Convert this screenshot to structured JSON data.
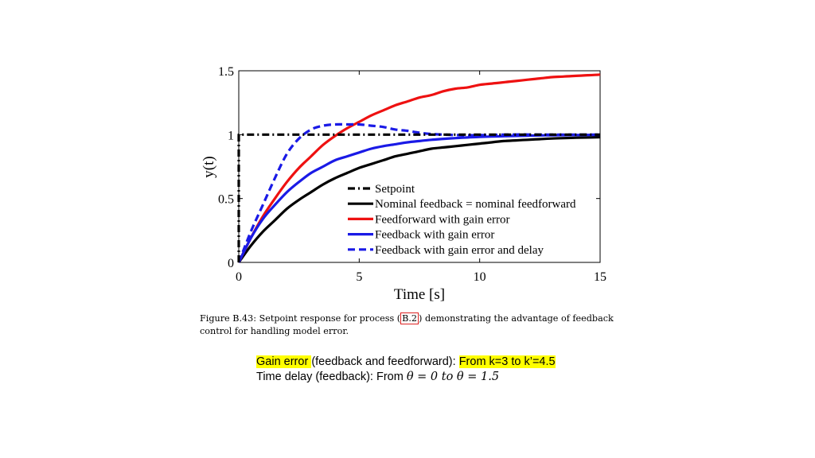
{
  "chart_data": {
    "type": "line",
    "xlabel": "Time [s]",
    "ylabel": "y(t)",
    "xlim": [
      0,
      15
    ],
    "ylim": [
      0,
      1.5
    ],
    "xticks": [
      "0",
      "5",
      "10",
      "15"
    ],
    "yticks": [
      "0",
      "0.5",
      "1",
      "1.5"
    ],
    "legend_position": "bottom-right",
    "grid": false,
    "x": [
      0,
      0.5,
      1,
      1.5,
      2,
      2.5,
      3,
      3.5,
      4,
      4.5,
      5,
      5.5,
      6,
      6.5,
      7,
      7.5,
      8,
      8.5,
      9,
      9.5,
      10,
      10.5,
      11,
      11.5,
      12,
      12.5,
      13,
      13.5,
      14,
      14.5,
      15
    ],
    "series": [
      {
        "name": "Setpoint",
        "color": "#000000",
        "dash": "dashdot",
        "step": true,
        "values": [
          1,
          1,
          1,
          1,
          1,
          1,
          1,
          1,
          1,
          1,
          1,
          1,
          1,
          1,
          1,
          1,
          1,
          1,
          1,
          1,
          1,
          1,
          1,
          1,
          1,
          1,
          1,
          1,
          1,
          1,
          1
        ]
      },
      {
        "name": "Nominal feedback = nominal feedforward",
        "color": "#000000",
        "dash": "solid",
        "values": [
          0,
          0.13,
          0.24,
          0.33,
          0.42,
          0.49,
          0.55,
          0.61,
          0.66,
          0.7,
          0.74,
          0.77,
          0.8,
          0.83,
          0.85,
          0.87,
          0.89,
          0.9,
          0.91,
          0.92,
          0.93,
          0.94,
          0.95,
          0.955,
          0.96,
          0.965,
          0.97,
          0.973,
          0.976,
          0.978,
          0.98
        ]
      },
      {
        "name": "Feedforward with gain error",
        "color": "#ee1111",
        "dash": "solid",
        "values": [
          0,
          0.19,
          0.36,
          0.5,
          0.63,
          0.74,
          0.83,
          0.92,
          0.99,
          1.05,
          1.1,
          1.15,
          1.19,
          1.23,
          1.26,
          1.29,
          1.31,
          1.34,
          1.36,
          1.37,
          1.39,
          1.4,
          1.41,
          1.42,
          1.43,
          1.44,
          1.45,
          1.455,
          1.46,
          1.465,
          1.47
        ]
      },
      {
        "name": "Feedback with gain error",
        "color": "#1a1ae6",
        "dash": "solid",
        "values": [
          0,
          0.19,
          0.34,
          0.45,
          0.55,
          0.63,
          0.7,
          0.75,
          0.8,
          0.83,
          0.86,
          0.89,
          0.91,
          0.925,
          0.94,
          0.95,
          0.96,
          0.967,
          0.973,
          0.978,
          0.982,
          0.985,
          0.988,
          0.99,
          0.992,
          0.994,
          0.995,
          0.996,
          0.997,
          0.998,
          0.999
        ]
      },
      {
        "name": "Feedback with gain error and delay",
        "color": "#1a1ae6",
        "dash": "dashed",
        "values": [
          0,
          0.24,
          0.45,
          0.66,
          0.85,
          0.97,
          1.04,
          1.07,
          1.08,
          1.08,
          1.08,
          1.07,
          1.06,
          1.04,
          1.03,
          1.015,
          1.005,
          1.0,
          0.997,
          0.995,
          0.996,
          0.998,
          1.0,
          1.001,
          1.001,
          1.0,
          1.0,
          1.0,
          1.0,
          1.0,
          1.0
        ]
      }
    ]
  },
  "caption": {
    "prefix": "Figure B.43: Setpoint response for process (",
    "ref": "B.2",
    "suffix": ") demonstrating the advantage of feedback control for handling model error."
  },
  "notes": {
    "line1_highlight_a": "Gain error ",
    "line1_text": "(feedback and feedforward):  ",
    "line1_highlight_b": "From k=3 to k’=4.5",
    "line2_text": "Time delay (feedback): From ",
    "line2_math": "θ = 0 to θ = 1.5"
  }
}
